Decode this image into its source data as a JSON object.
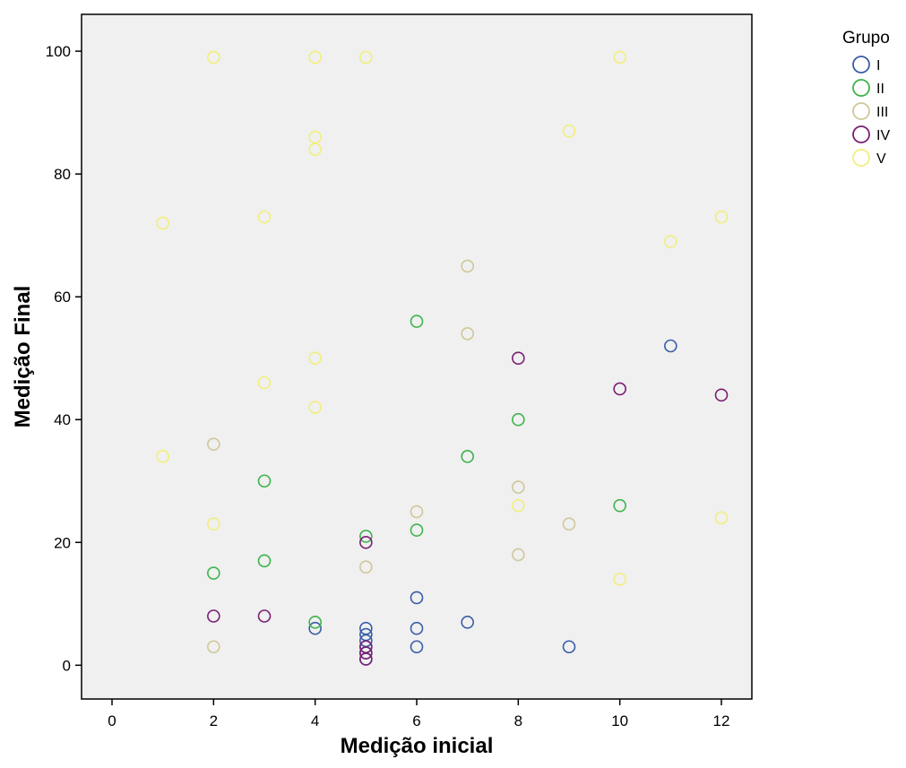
{
  "chart_data": {
    "type": "scatter",
    "title": "",
    "xlabel": "Medição inicial",
    "ylabel": "Medição Final",
    "xlim": [
      -0.6,
      12.6
    ],
    "ylim": [
      -5.5,
      106
    ],
    "xticks": [
      0,
      2,
      4,
      6,
      8,
      10,
      12
    ],
    "yticks": [
      0,
      20,
      40,
      60,
      80,
      100
    ],
    "grid": false,
    "legend": {
      "title": "Grupo",
      "placement": "top-right-outside"
    },
    "series": [
      {
        "name": "I",
        "color": "#3a5ca8",
        "points": [
          [
            4,
            6
          ],
          [
            5,
            1
          ],
          [
            5,
            2
          ],
          [
            5,
            3
          ],
          [
            5,
            4
          ],
          [
            5,
            5
          ],
          [
            5,
            6
          ],
          [
            6,
            3
          ],
          [
            6,
            6
          ],
          [
            6,
            11
          ],
          [
            7,
            7
          ],
          [
            9,
            3
          ],
          [
            11,
            52
          ]
        ]
      },
      {
        "name": "II",
        "color": "#3cb44b",
        "points": [
          [
            2,
            15
          ],
          [
            3,
            17
          ],
          [
            3,
            30
          ],
          [
            4,
            7
          ],
          [
            5,
            21
          ],
          [
            6,
            22
          ],
          [
            6,
            56
          ],
          [
            7,
            34
          ],
          [
            8,
            40
          ],
          [
            10,
            26
          ]
        ]
      },
      {
        "name": "III",
        "color": "#cfc79a",
        "points": [
          [
            2,
            3
          ],
          [
            2,
            36
          ],
          [
            5,
            16
          ],
          [
            6,
            25
          ],
          [
            7,
            54
          ],
          [
            7,
            65
          ],
          [
            8,
            18
          ],
          [
            8,
            29
          ],
          [
            9,
            23
          ]
        ]
      },
      {
        "name": "IV",
        "color": "#7a1f73",
        "points": [
          [
            2,
            8
          ],
          [
            3,
            8
          ],
          [
            5,
            1
          ],
          [
            5,
            2
          ],
          [
            5,
            3
          ],
          [
            5,
            20
          ],
          [
            8,
            50
          ],
          [
            10,
            45
          ],
          [
            12,
            44
          ]
        ]
      },
      {
        "name": "V",
        "color": "#f1ef7a",
        "points": [
          [
            1,
            34
          ],
          [
            1,
            72
          ],
          [
            2,
            23
          ],
          [
            2,
            99
          ],
          [
            3,
            46
          ],
          [
            3,
            73
          ],
          [
            4,
            42
          ],
          [
            4,
            50
          ],
          [
            4,
            84
          ],
          [
            4,
            86
          ],
          [
            4,
            99
          ],
          [
            5,
            99
          ],
          [
            8,
            26
          ],
          [
            9,
            87
          ],
          [
            10,
            14
          ],
          [
            10,
            99
          ],
          [
            11,
            69
          ],
          [
            12,
            24
          ],
          [
            12,
            73
          ]
        ]
      }
    ]
  }
}
